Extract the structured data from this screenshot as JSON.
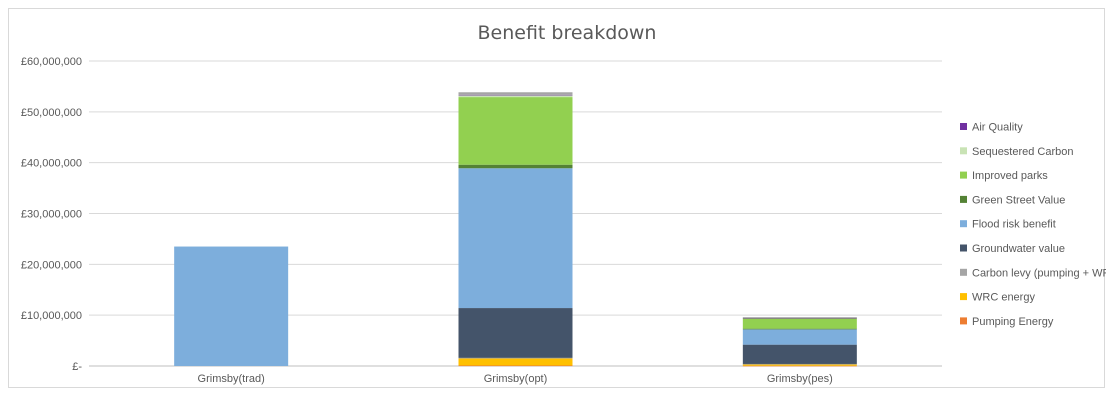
{
  "chart_data": {
    "type": "bar",
    "stacked": true,
    "title": "Benefit breakdown",
    "xlabel": "",
    "ylabel": "",
    "ylim": [
      0,
      60000000
    ],
    "y_ticks": [
      0,
      10000000,
      20000000,
      30000000,
      40000000,
      50000000,
      60000000
    ],
    "y_tick_labels": [
      "£-",
      "£10,000,000",
      "£20,000,000",
      "£30,000,000",
      "£40,000,000",
      "£50,000,000",
      "£60,000,000"
    ],
    "grid": true,
    "legend_position": "right",
    "categories": [
      "Grimsby(trad)",
      "Grimsby(opt)",
      "Grimsby(pes)"
    ],
    "series": [
      {
        "name": "Pumping Energy",
        "color": "#ED7D31",
        "values": [
          0,
          100000,
          50000
        ]
      },
      {
        "name": "WRC energy",
        "color": "#FFC000",
        "values": [
          0,
          1400000,
          300000
        ]
      },
      {
        "name": "Carbon levy (pumping + WRC)",
        "color": "#A5A5A5",
        "values": [
          0,
          100000,
          50000
        ]
      },
      {
        "name": "Groundwater value",
        "color": "#44546A",
        "values": [
          0,
          9800000,
          3800000
        ]
      },
      {
        "name": "Flood risk benefit",
        "color": "#7DAEDC",
        "values": [
          23500000,
          27500000,
          3000000
        ]
      },
      {
        "name": "Green Street Value",
        "color": "#548235",
        "values": [
          0,
          700000,
          150000
        ]
      },
      {
        "name": "Improved parks",
        "color": "#92D050",
        "values": [
          0,
          13300000,
          2000000
        ]
      },
      {
        "name": "Sequestered Carbon",
        "color": "#C9E3B5",
        "values": [
          0,
          400000,
          100000
        ]
      },
      {
        "name": "Air Quality",
        "color": "#7030A0",
        "values": [
          0,
          50000,
          20000
        ]
      },
      {
        "name": "",
        "color": "#A5A5A5",
        "values": [
          0,
          500000,
          150000
        ]
      }
    ],
    "legend_order": [
      "Air Quality",
      "Sequestered Carbon",
      "Improved parks",
      "Green Street Value",
      "Flood risk benefit",
      "Groundwater value",
      "Carbon levy (pumping + WRC)",
      "WRC energy",
      "Pumping Energy"
    ]
  }
}
